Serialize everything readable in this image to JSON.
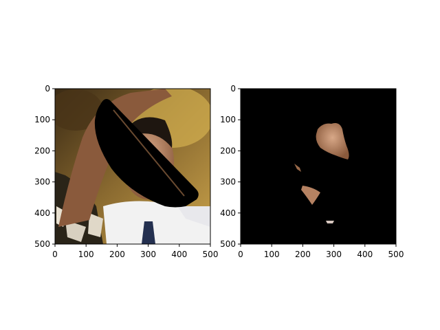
{
  "panels": [
    {
      "name": "left",
      "x_ticks": [
        "0",
        "100",
        "200",
        "300",
        "400",
        "500"
      ],
      "y_ticks": [
        "0",
        "100",
        "200",
        "300",
        "400",
        "500"
      ]
    },
    {
      "name": "right",
      "x_ticks": [
        "0",
        "100",
        "200",
        "300",
        "400",
        "500"
      ],
      "y_ticks": [
        "0",
        "100",
        "200",
        "300",
        "400",
        "500"
      ]
    }
  ],
  "colors": {
    "axis": "#000000",
    "mask_background": "#000000",
    "skin": "#b07a5a",
    "shirt": "#f2f2f2",
    "crowd_yellow": "#c8a040"
  }
}
